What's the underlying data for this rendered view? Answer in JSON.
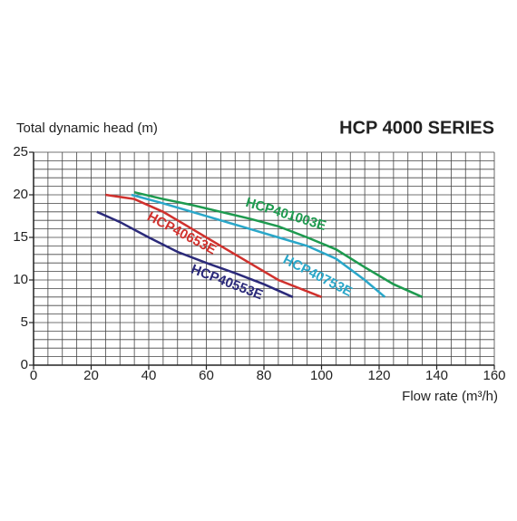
{
  "chart_data": {
    "type": "line",
    "title": "HCP 4000 SERIES",
    "y_label": "Total dynamic head (m)",
    "x_label": "Flow rate (m³/h)",
    "xlim": [
      0,
      160
    ],
    "xticks": [
      0,
      20,
      40,
      60,
      80,
      100,
      120,
      140,
      160
    ],
    "ylim": [
      0,
      25
    ],
    "yticks": [
      0,
      5,
      10,
      15,
      20,
      25
    ],
    "grid": true,
    "minor_grid": {
      "x": 5,
      "y": 1
    },
    "series": [
      {
        "name": "HCP40553E",
        "color": "#2b2a7a",
        "x": [
          22,
          30,
          40,
          50,
          60,
          70,
          80,
          90
        ],
        "values": [
          18,
          16.8,
          15,
          13.3,
          12,
          10.8,
          9.5,
          8
        ]
      },
      {
        "name": "HCP40653E",
        "color": "#d0312d",
        "x": [
          25,
          35,
          45,
          55,
          65,
          75,
          85,
          100
        ],
        "values": [
          20,
          19.5,
          18,
          16,
          14,
          12,
          10,
          8
        ]
      },
      {
        "name": "HCP40753E",
        "color": "#2aa7c9",
        "x": [
          34,
          45,
          55,
          65,
          75,
          85,
          95,
          105,
          115,
          122
        ],
        "values": [
          20,
          19,
          18,
          17,
          16,
          15,
          14,
          12.5,
          10,
          8
        ]
      },
      {
        "name": "HCP401003E",
        "color": "#1e9a4f",
        "x": [
          35,
          45,
          55,
          65,
          75,
          85,
          95,
          105,
          115,
          125,
          135
        ],
        "values": [
          20.3,
          19.5,
          18.8,
          18,
          17.2,
          16.3,
          15,
          13.6,
          11.5,
          9.5,
          8
        ]
      }
    ]
  }
}
